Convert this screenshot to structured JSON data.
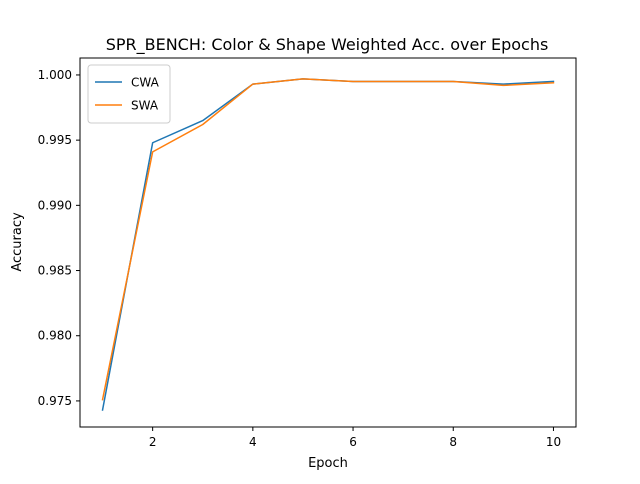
{
  "chart_data": {
    "type": "line",
    "title": "SPR_BENCH: Color & Shape Weighted Acc. over Epochs",
    "xlabel": "Epoch",
    "ylabel": "Accuracy",
    "x": [
      1,
      2,
      3,
      4,
      5,
      6,
      7,
      8,
      9,
      10
    ],
    "xlim": [
      0.55,
      10.45
    ],
    "ylim": [
      0.973,
      1.0013
    ],
    "xticks": [
      2,
      4,
      6,
      8,
      10
    ],
    "yticks": [
      0.975,
      0.98,
      0.985,
      0.99,
      0.995,
      1.0
    ],
    "xtick_labels": [
      "2",
      "4",
      "6",
      "8",
      "10"
    ],
    "ytick_labels": [
      "0.975",
      "0.980",
      "0.985",
      "0.990",
      "0.995",
      "1.000"
    ],
    "grid": false,
    "legend_position": "top-left",
    "series": [
      {
        "name": "CWA",
        "color": "#1f77b4",
        "values": [
          0.9743,
          0.9948,
          0.9965,
          0.9993,
          0.9997,
          0.9995,
          0.9995,
          0.9995,
          0.9993,
          0.9995
        ]
      },
      {
        "name": "SWA",
        "color": "#ff7f0e",
        "values": [
          0.9751,
          0.9941,
          0.9962,
          0.9993,
          0.9997,
          0.9995,
          0.9995,
          0.9995,
          0.9992,
          0.9994
        ]
      }
    ]
  }
}
